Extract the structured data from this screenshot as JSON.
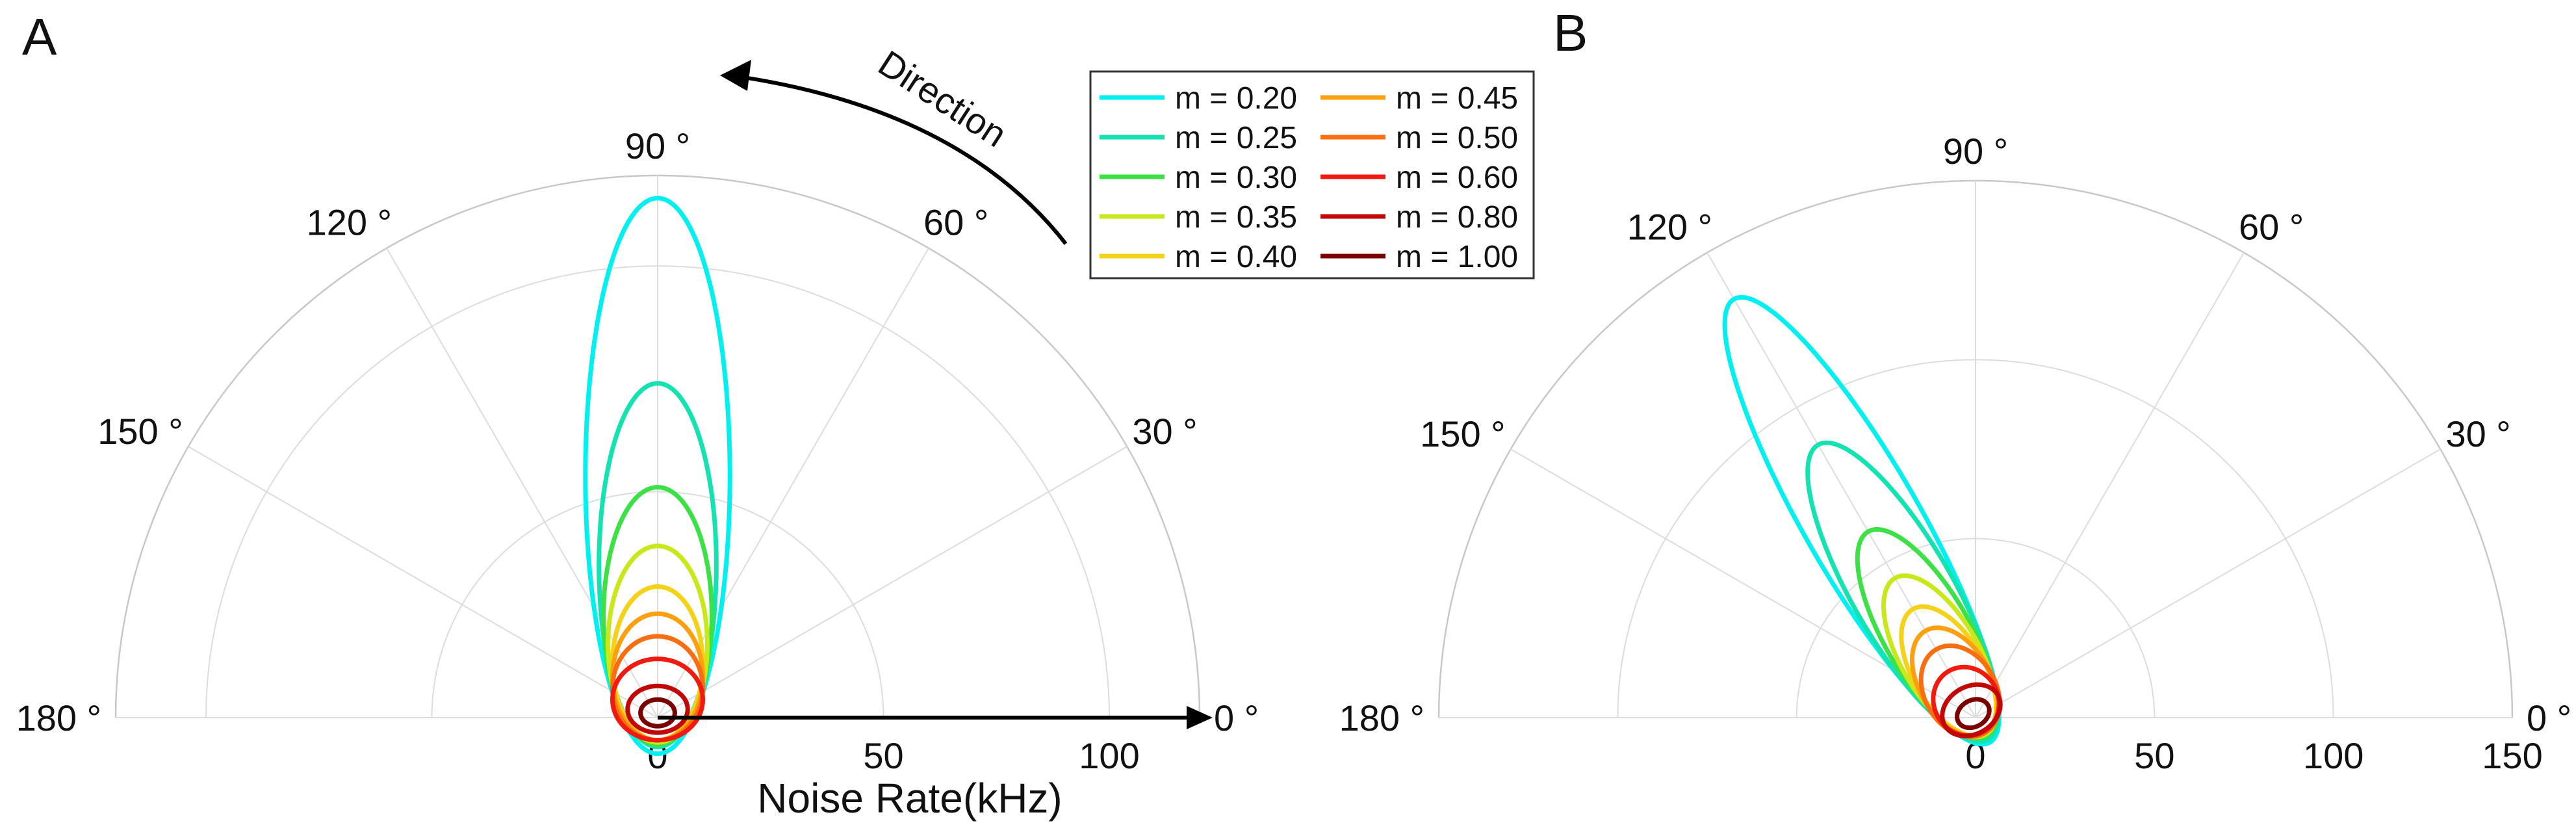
{
  "chart_data": [
    {
      "panel": "A",
      "type": "polar-line",
      "title": "",
      "rmax": 120,
      "xlabel": "Noise Rate(kHz)",
      "angle_ticks": [
        0,
        30,
        60,
        90,
        120,
        150,
        180
      ],
      "angle_tick_labels": [
        "0 °",
        "30 °",
        "60 °",
        "90 °",
        "120 °",
        "150 °",
        "180 °"
      ],
      "radial_grid": [
        50,
        100
      ],
      "radial_tick_labels": [
        "0",
        "50",
        "100"
      ],
      "lobe_direction_deg": 90,
      "series": [
        {
          "name": "m = 0.20",
          "color": "#00f0f0",
          "peak_r": 115,
          "width_r": 16
        },
        {
          "name": "m = 0.25",
          "color": "#14e2b0",
          "peak_r": 74,
          "width_r": 13
        },
        {
          "name": "m = 0.30",
          "color": "#3ee048",
          "peak_r": 51,
          "width_r": 12
        },
        {
          "name": "m = 0.35",
          "color": "#c8e81c",
          "peak_r": 38,
          "width_r": 11
        },
        {
          "name": "m = 0.40",
          "color": "#f4d21a",
          "peak_r": 29,
          "width_r": 10
        },
        {
          "name": "m = 0.45",
          "color": "#fca010",
          "peak_r": 23,
          "width_r": 10
        },
        {
          "name": "m = 0.50",
          "color": "#f86e10",
          "peak_r": 18,
          "width_r": 10
        },
        {
          "name": "m = 0.60",
          "color": "#f01a10",
          "peak_r": 13,
          "width_r": 10
        },
        {
          "name": "m = 0.80",
          "color": "#c00808",
          "peak_r": 7,
          "width_r": 9
        },
        {
          "name": "m = 1.00",
          "color": "#7a0000",
          "peak_r": 4,
          "width_r": 8
        }
      ],
      "annotations": {
        "direction_label": "Direction"
      }
    },
    {
      "panel": "B",
      "type": "polar-line",
      "title": "",
      "rmax": 150,
      "xlabel": "",
      "angle_ticks": [
        0,
        30,
        60,
        90,
        120,
        150,
        180
      ],
      "angle_tick_labels": [
        "0 °",
        "30 °",
        "60 °",
        "90 °",
        "120 °",
        "150 °",
        "180 °"
      ],
      "radial_grid": [
        50,
        100,
        150
      ],
      "radial_tick_labels": [
        "0",
        "50",
        "100",
        "150"
      ],
      "lobe_direction_deg": 120,
      "series": [
        {
          "name": "m = 0.20",
          "color": "#00f0f0",
          "peak_r": 135,
          "width_r": 16
        },
        {
          "name": "m = 0.25",
          "color": "#14e2b0",
          "peak_r": 88,
          "width_r": 14
        },
        {
          "name": "m = 0.30",
          "color": "#3ee048",
          "peak_r": 60,
          "width_r": 12
        },
        {
          "name": "m = 0.35",
          "color": "#c8e81c",
          "peak_r": 45,
          "width_r": 11
        },
        {
          "name": "m = 0.40",
          "color": "#f4d21a",
          "peak_r": 35,
          "width_r": 10
        },
        {
          "name": "m = 0.45",
          "color": "#fca010",
          "peak_r": 28,
          "width_r": 10
        },
        {
          "name": "m = 0.50",
          "color": "#f86e10",
          "peak_r": 22,
          "width_r": 10
        },
        {
          "name": "m = 0.60",
          "color": "#f01a10",
          "peak_r": 15,
          "width_r": 9
        },
        {
          "name": "m = 0.80",
          "color": "#c00808",
          "peak_r": 9,
          "width_r": 9
        },
        {
          "name": "m = 1.00",
          "color": "#7a0000",
          "peak_r": 5,
          "width_r": 8
        }
      ]
    }
  ],
  "legend": {
    "placement": "top-right of panel A",
    "entries": [
      "m = 0.20",
      "m = 0.25",
      "m = 0.30",
      "m = 0.35",
      "m = 0.40",
      "m = 0.45",
      "m = 0.50",
      "m = 0.60",
      "m = 0.80",
      "m = 1.00"
    ]
  },
  "colors": {
    "grid": "#dcdcdc",
    "outer_arc": "#c8c8c8",
    "text": "#111111",
    "arrow": "#000000",
    "legend_border": "#333333"
  }
}
